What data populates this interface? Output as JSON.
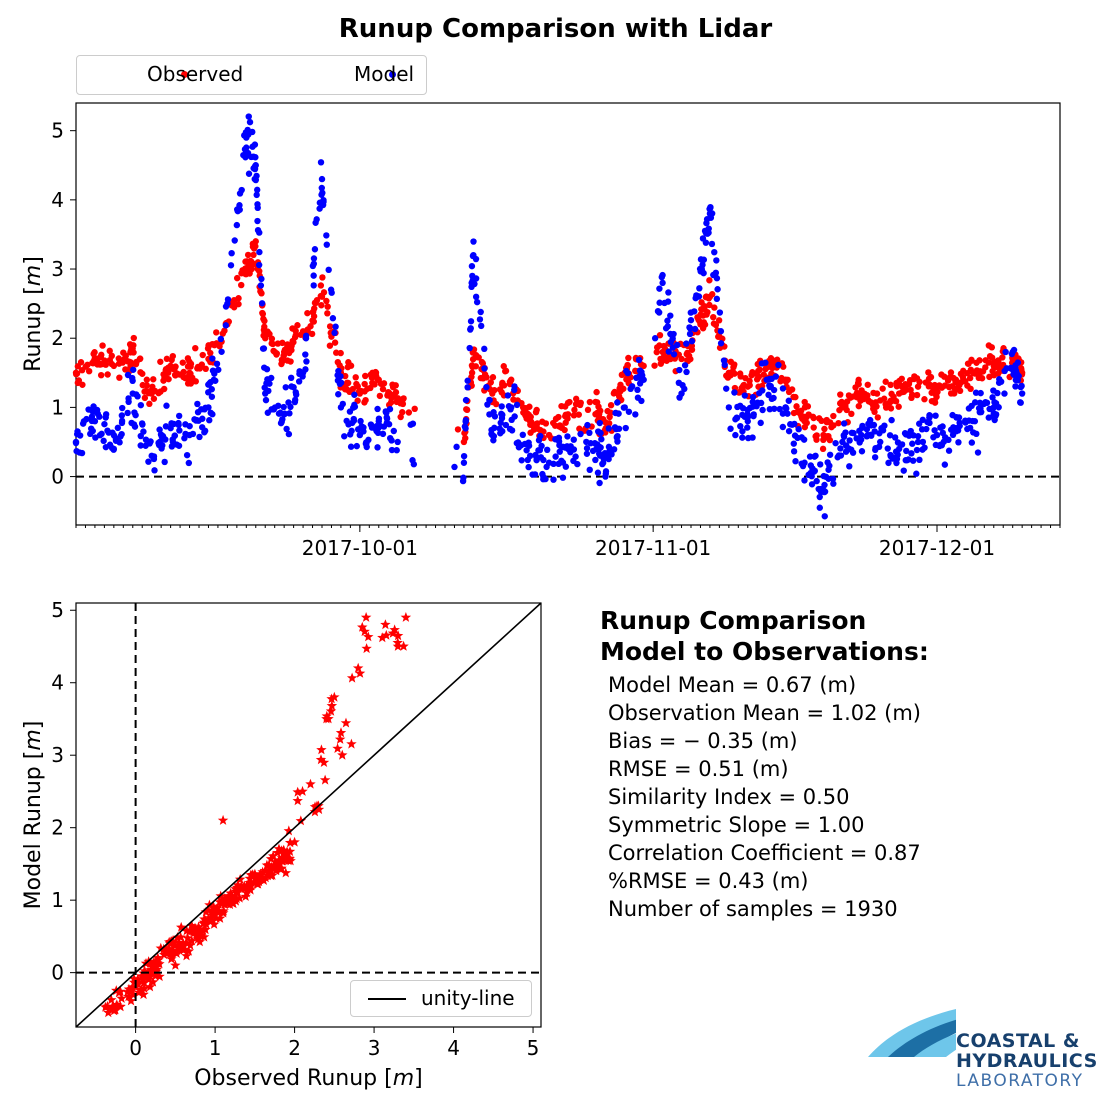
{
  "figure_title": "Runup Comparison with Lidar",
  "legend": {
    "observed": "Observed",
    "model": "Model"
  },
  "colors": {
    "observed": "#ff0000",
    "model": "#0000ff",
    "logo_dark": "#17406d",
    "logo_light": "#6ec6ea"
  },
  "stats": {
    "title_line1": "Runup Comparison",
    "title_line2": "Model to Observations:",
    "rows": [
      "Model Mean  = 0.67 (m)",
      "Observation Mean  = 1.02 (m)",
      "Bias  = − 0.35 (m)",
      "RMSE  = 0.51 (m)",
      "Similarity Index  = 0.50",
      "Symmetric Slope  = 1.00",
      "Correlation Coefficient  = 0.87",
      "%RMSE  = 0.43 (m)",
      "Number of samples  = 1930"
    ]
  },
  "unity_label": "unity-line",
  "logo": {
    "line1": "COASTAL &",
    "line2": "HYDRAULICS",
    "line3": "LABORATORY"
  },
  "chart_data": [
    {
      "type": "scatter",
      "title": "Runup Comparison with Lidar",
      "xlabel": "",
      "ylabel": "Runup [m]",
      "x_type": "date",
      "xlim": [
        "2017-09-01",
        "2017-12-14"
      ],
      "ylim": [
        -0.7,
        5.4
      ],
      "xticks": [
        "2017-10-01",
        "2017-11-01",
        "2017-12-01"
      ],
      "yticks": [
        0,
        1,
        2,
        3,
        4,
        5
      ],
      "zero_line": true,
      "legend_position": "top-left, above axes",
      "series": [
        {
          "name": "Observed",
          "color": "#ff0000",
          "x": [
            "2017-09-01",
            "2017-09-03",
            "2017-09-05",
            "2017-09-07",
            "2017-09-09",
            "2017-09-11",
            "2017-09-13",
            "2017-09-15",
            "2017-09-17",
            "2017-09-19",
            "2017-09-20",
            "2017-09-21",
            "2017-09-23",
            "2017-09-25",
            "2017-09-27",
            "2017-09-29",
            "2017-10-01",
            "2017-10-03",
            "2017-10-05",
            "2017-10-12",
            "2017-10-13",
            "2017-10-15",
            "2017-10-17",
            "2017-10-19",
            "2017-10-21",
            "2017-10-23",
            "2017-10-26",
            "2017-10-27",
            "2017-10-29",
            "2017-10-31",
            "2017-11-02",
            "2017-11-04",
            "2017-11-06",
            "2017-11-07",
            "2017-11-09",
            "2017-11-11",
            "2017-11-13",
            "2017-11-15",
            "2017-11-17",
            "2017-11-19",
            "2017-11-21",
            "2017-11-23",
            "2017-11-25",
            "2017-11-27",
            "2017-11-29",
            "2017-12-01",
            "2017-12-03",
            "2017-12-05",
            "2017-12-07",
            "2017-12-09",
            "2017-12-10"
          ],
          "y": [
            1.5,
            1.7,
            1.6,
            1.8,
            1.2,
            1.6,
            1.5,
            1.7,
            2.2,
            3.0,
            3.4,
            2.0,
            1.8,
            2.1,
            2.6,
            1.5,
            1.2,
            1.4,
            1.1,
            0.5,
            1.8,
            1.2,
            1.4,
            0.8,
            0.6,
            0.9,
            0.9,
            0.7,
            1.5,
            1.6,
            1.8,
            1.7,
            2.2,
            2.6,
            1.5,
            1.3,
            1.6,
            1.4,
            0.8,
            0.6,
            1.0,
            1.2,
            1.1,
            1.2,
            1.3,
            1.3,
            1.4,
            1.5,
            1.6,
            1.7,
            1.5
          ]
        },
        {
          "name": "Model",
          "color": "#0000ff",
          "x": [
            "2017-09-01",
            "2017-09-03",
            "2017-09-05",
            "2017-09-07",
            "2017-09-09",
            "2017-09-11",
            "2017-09-13",
            "2017-09-15",
            "2017-09-17",
            "2017-09-19",
            "2017-09-20",
            "2017-09-21",
            "2017-09-23",
            "2017-09-25",
            "2017-09-27",
            "2017-09-29",
            "2017-10-01",
            "2017-10-03",
            "2017-10-05",
            "2017-10-12",
            "2017-10-13",
            "2017-10-15",
            "2017-10-17",
            "2017-10-19",
            "2017-10-21",
            "2017-10-23",
            "2017-10-26",
            "2017-10-27",
            "2017-10-29",
            "2017-10-31",
            "2017-11-02",
            "2017-11-04",
            "2017-11-06",
            "2017-11-07",
            "2017-11-09",
            "2017-11-11",
            "2017-11-13",
            "2017-11-15",
            "2017-11-17",
            "2017-11-19",
            "2017-11-21",
            "2017-11-23",
            "2017-11-25",
            "2017-11-27",
            "2017-11-29",
            "2017-12-01",
            "2017-12-03",
            "2017-12-05",
            "2017-12-07",
            "2017-12-09",
            "2017-12-10"
          ],
          "y": [
            0.5,
            0.8,
            0.4,
            1.2,
            0.3,
            0.7,
            0.6,
            1.0,
            2.5,
            4.9,
            4.5,
            1.2,
            0.9,
            1.5,
            4.3,
            1.0,
            0.6,
            0.8,
            0.5,
            0.2,
            3.2,
            0.6,
            1.0,
            0.3,
            0.2,
            0.4,
            0.4,
            0.3,
            1.0,
            1.4,
            2.8,
            1.2,
            3.0,
            3.8,
            1.0,
            0.8,
            1.4,
            1.0,
            0.2,
            -0.2,
            0.5,
            0.6,
            0.5,
            0.4,
            0.5,
            0.6,
            0.7,
            0.8,
            1.0,
            1.8,
            1.2
          ]
        }
      ]
    },
    {
      "type": "scatter",
      "title": "",
      "xlabel": "Observed Runup [m]",
      "ylabel": "Model Runup [m]",
      "xlim": [
        -0.75,
        5.1
      ],
      "ylim": [
        -0.75,
        5.1
      ],
      "xticks": [
        0,
        1,
        2,
        3,
        4,
        5
      ],
      "yticks": [
        0,
        1,
        2,
        3,
        4,
        5
      ],
      "marker": "star",
      "color": "#ff0000",
      "reference_lines": [
        "x=0 dashed",
        "y=0 dashed",
        "unity-line y=x"
      ],
      "legend_position": "bottom-right",
      "x": [
        -0.3,
        0.0,
        0.2,
        0.4,
        0.6,
        0.8,
        1.0,
        1.2,
        1.4,
        1.6,
        1.8,
        2.0,
        2.1,
        2.3,
        2.4,
        2.5,
        2.6,
        2.8,
        2.9,
        3.3,
        3.4,
        1.1,
        0.5,
        2.2
      ],
      "y": [
        -0.5,
        -0.2,
        0.0,
        0.3,
        0.4,
        0.6,
        0.8,
        1.0,
        1.2,
        1.3,
        1.5,
        1.8,
        2.5,
        2.3,
        3.5,
        3.8,
        3.0,
        4.2,
        4.9,
        4.5,
        4.9,
        2.1,
        0.1,
        2.6
      ]
    }
  ]
}
